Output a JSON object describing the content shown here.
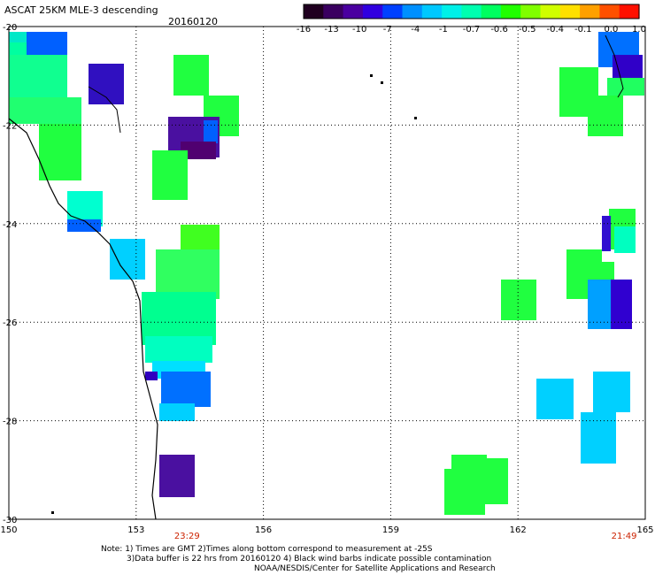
{
  "header": {
    "title": "ASCAT 25KM MLE-3 descending",
    "date": "20160120"
  },
  "legend": {
    "colors": [
      "#200020",
      "#3a0060",
      "#4a00a0",
      "#3000e0",
      "#0040ff",
      "#0090ff",
      "#00c8ff",
      "#00f0e8",
      "#00ffb0",
      "#00ff60",
      "#20ff00",
      "#80ff00",
      "#d0ff00",
      "#ffe000",
      "#ffa000",
      "#ff5000",
      "#ff1000"
    ],
    "labels": [
      "-16",
      "-13",
      "-10",
      "-7",
      "-4",
      "-1",
      "-0.7",
      "-0.6",
      "-0.5",
      "-0.4",
      "-0.1",
      "0.0",
      "1.0"
    ]
  },
  "map": {
    "lon_labels": [
      "150",
      "153",
      "156",
      "159",
      "162",
      "165"
    ],
    "lat_labels": [
      "-20",
      "-22",
      "-24",
      "-26",
      "-28",
      "-30"
    ],
    "time_labels": [
      {
        "text": "23:29",
        "lon": 154.2
      },
      {
        "text": "21:49",
        "lon": 164.5
      }
    ]
  },
  "notes": {
    "line1": "Note: 1) Times are GMT 2)Times along bottom correspond to measurement at -25S",
    "line2": "3)Data buffer is 22 hrs from 20160120 4) Black wind barbs indicate possible contamination",
    "line3": "NOAA/NESDIS/Center for Satellite Applications and Research"
  }
}
